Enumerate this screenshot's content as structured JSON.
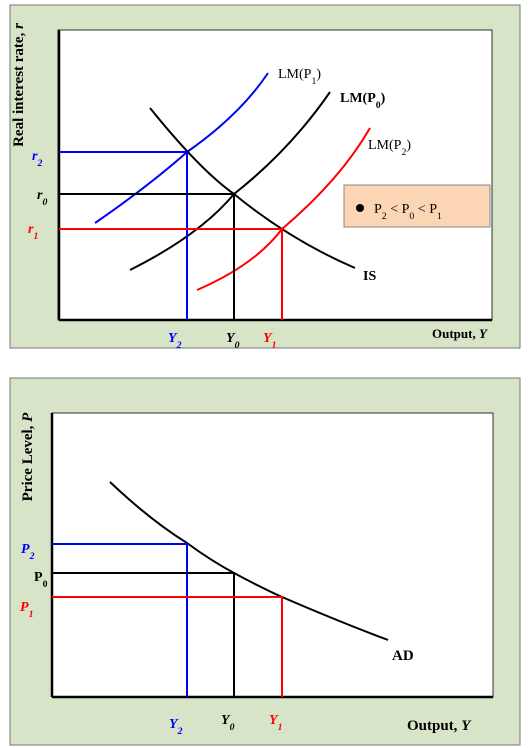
{
  "top": {
    "y_axis": [
      "Real interest rate, ",
      "r"
    ],
    "x_axis": [
      "Output, ",
      "Y"
    ],
    "r2": [
      "r",
      "2"
    ],
    "r0": [
      "r",
      "0"
    ],
    "r1": [
      "r",
      "1"
    ],
    "y2": [
      "Y",
      "2"
    ],
    "y0": [
      "Y",
      "0"
    ],
    "y1": [
      "Y",
      "1"
    ],
    "lm_p1": [
      "LM(P",
      "1",
      ")"
    ],
    "lm_p0": [
      "LM(P",
      "0",
      ")"
    ],
    "lm_p2": [
      "LM(P",
      "2",
      ")"
    ],
    "is": [
      "IS"
    ],
    "legend": [
      "P",
      "2",
      " < P",
      "0",
      " < P",
      "1"
    ]
  },
  "bottom": {
    "y_axis": [
      "Price Level, ",
      "P"
    ],
    "x_axis": [
      "Output, ",
      "Y"
    ],
    "p2": [
      "P",
      "2"
    ],
    "p0": [
      "P",
      "0"
    ],
    "p1": [
      "P",
      "1"
    ],
    "y2": [
      "Y",
      "2"
    ],
    "y0": [
      "Y",
      "0"
    ],
    "y1": [
      "Y",
      "1"
    ],
    "ad": [
      "AD"
    ]
  }
}
